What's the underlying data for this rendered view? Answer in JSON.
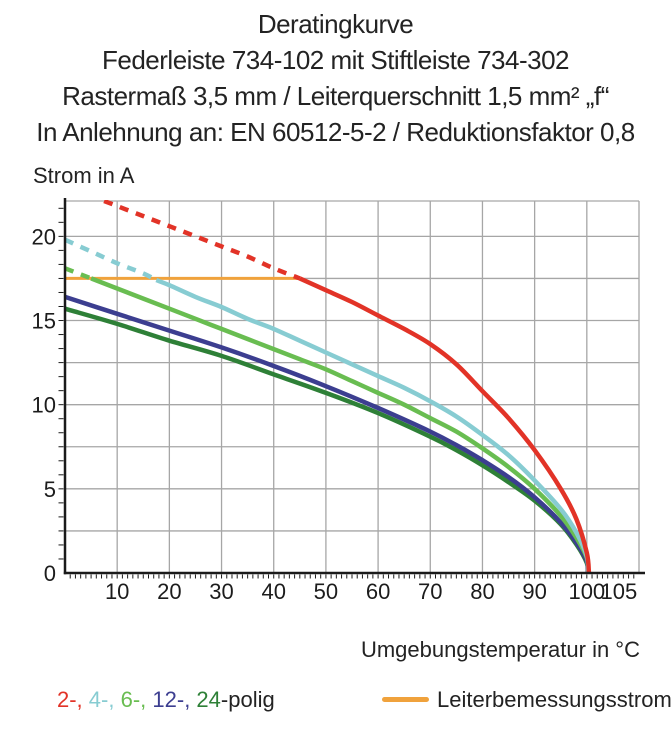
{
  "title_block": {
    "line1": "Deratingkurve",
    "line2": "Federleiste 734-102 mit Stiftleiste 734-302",
    "line3": "Rastermaß 3,5 mm / Leiterquerschnitt 1,5 mm² „f“",
    "line4": "In Anlehnung an: EN 60512-5-2 / Reduktionsfaktor 0,8"
  },
  "axis_labels": {
    "y": "Strom in A",
    "x": "Umgebungstemperatur in °C"
  },
  "legend": {
    "poles": [
      {
        "label": "2-,",
        "color": "#e23327"
      },
      {
        "label": " 4-,",
        "color": "#87ccd2"
      },
      {
        "label": " 6-,",
        "color": "#69bd51"
      },
      {
        "label": " 12-,",
        "color": "#3c3e90"
      },
      {
        "label": " 24",
        "color": "#2e8037"
      }
    ],
    "suffix": "-polig",
    "suffix_color": "#232323",
    "rated_current_label": "Leiterbemessungsstrom",
    "rated_current_color": "#f0a23c"
  },
  "chart_data": {
    "type": "line",
    "title": "Deratingkurve",
    "xlabel": "Umgebungstemperatur in °C",
    "ylabel": "Strom in A",
    "xlim": [
      0,
      110
    ],
    "ylim": [
      0,
      22.1
    ],
    "grid": {
      "x_major": 10,
      "y_major": 2.5,
      "x_minor": 1,
      "y_minor": 0.8333,
      "color": "#a6a6a6"
    },
    "x_ticks": [
      {
        "v": 10,
        "t": "10"
      },
      {
        "v": 20,
        "t": "20"
      },
      {
        "v": 30,
        "t": "30"
      },
      {
        "v": 40,
        "t": "40"
      },
      {
        "v": 50,
        "t": "50"
      },
      {
        "v": 60,
        "t": "60"
      },
      {
        "v": 70,
        "t": "70"
      },
      {
        "v": 80,
        "t": "80"
      },
      {
        "v": 90,
        "t": "90"
      },
      {
        "v": 100,
        "t": "100"
      },
      {
        "v": 105,
        "t": "105",
        "dx": 6
      }
    ],
    "y_ticks": [
      {
        "v": 0,
        "t": "0"
      },
      {
        "v": 5,
        "t": "5"
      },
      {
        "v": 10,
        "t": "10"
      },
      {
        "v": 15,
        "t": "15"
      },
      {
        "v": 20,
        "t": "20"
      }
    ],
    "rated_current_A": 17.5,
    "series": [
      {
        "name": "Leiterbemessungsstrom",
        "color": "#f0a23c",
        "width": 3,
        "solid": [
          [
            0,
            17.5
          ],
          [
            45,
            17.5
          ]
        ]
      },
      {
        "name": "24-polig",
        "color": "#2e8037",
        "width": 4.5,
        "solid": [
          [
            0,
            15.7
          ],
          [
            10,
            14.8
          ],
          [
            20,
            13.8
          ],
          [
            30,
            12.9
          ],
          [
            40,
            11.8
          ],
          [
            50,
            10.7
          ],
          [
            60,
            9.5
          ],
          [
            70,
            8.1
          ],
          [
            75,
            7.3
          ],
          [
            80,
            6.4
          ],
          [
            85,
            5.4
          ],
          [
            90,
            4.3
          ],
          [
            95,
            2.9
          ],
          [
            98,
            1.7
          ],
          [
            100,
            0.6
          ],
          [
            100.2,
            0
          ]
        ]
      },
      {
        "name": "12-polig",
        "color": "#3c3e90",
        "width": 4.5,
        "solid": [
          [
            0,
            16.4
          ],
          [
            10,
            15.4
          ],
          [
            20,
            14.4
          ],
          [
            30,
            13.4
          ],
          [
            40,
            12.3
          ],
          [
            50,
            11.1
          ],
          [
            60,
            9.8
          ],
          [
            70,
            8.4
          ],
          [
            75,
            7.6
          ],
          [
            80,
            6.7
          ],
          [
            85,
            5.7
          ],
          [
            90,
            4.5
          ],
          [
            95,
            3.0
          ],
          [
            98,
            1.8
          ],
          [
            100,
            0.7
          ],
          [
            100.2,
            0
          ]
        ]
      },
      {
        "name": "6-polig",
        "color": "#69bd51",
        "width": 4.5,
        "dashed": [
          [
            0,
            18.1
          ],
          [
            5,
            17.5
          ]
        ],
        "solid": [
          [
            5,
            17.5
          ],
          [
            10,
            16.9
          ],
          [
            15,
            16.3
          ],
          [
            20,
            15.7
          ],
          [
            25,
            15.1
          ],
          [
            30,
            14.5
          ],
          [
            35,
            13.9
          ],
          [
            40,
            13.3
          ],
          [
            45,
            12.7
          ],
          [
            50,
            12.1
          ],
          [
            55,
            11.4
          ],
          [
            60,
            10.7
          ],
          [
            65,
            10.0
          ],
          [
            70,
            9.2
          ],
          [
            75,
            8.4
          ],
          [
            80,
            7.4
          ],
          [
            85,
            6.3
          ],
          [
            90,
            5.0
          ],
          [
            95,
            3.4
          ],
          [
            98,
            2.1
          ],
          [
            100,
            0.9
          ],
          [
            100.3,
            0
          ]
        ]
      },
      {
        "name": "4-polig",
        "color": "#87ccd2",
        "width": 4.5,
        "dashed": [
          [
            0,
            19.8
          ],
          [
            5,
            19.1
          ],
          [
            10,
            18.4
          ],
          [
            15,
            17.8
          ],
          [
            17.5,
            17.4
          ]
        ],
        "solid": [
          [
            17.5,
            17.4
          ],
          [
            20,
            17.1
          ],
          [
            25,
            16.4
          ],
          [
            30,
            15.8
          ],
          [
            35,
            15.1
          ],
          [
            40,
            14.5
          ],
          [
            45,
            13.8
          ],
          [
            50,
            13.1
          ],
          [
            55,
            12.4
          ],
          [
            60,
            11.7
          ],
          [
            65,
            11.0
          ],
          [
            70,
            10.2
          ],
          [
            75,
            9.3
          ],
          [
            80,
            8.2
          ],
          [
            85,
            7.0
          ],
          [
            90,
            5.5
          ],
          [
            95,
            3.8
          ],
          [
            98,
            2.4
          ],
          [
            100,
            1.0
          ],
          [
            100.3,
            0
          ]
        ]
      },
      {
        "name": "2-polig",
        "color": "#e23327",
        "width": 4.5,
        "dashed": [
          [
            7.5,
            22.1
          ],
          [
            10,
            21.8
          ],
          [
            15,
            21.2
          ],
          [
            20,
            20.6
          ],
          [
            25,
            20.0
          ],
          [
            30,
            19.4
          ],
          [
            35,
            18.8
          ],
          [
            40,
            18.1
          ],
          [
            45,
            17.5
          ]
        ],
        "solid": [
          [
            45,
            17.5
          ],
          [
            50,
            16.8
          ],
          [
            55,
            16.1
          ],
          [
            60,
            15.3
          ],
          [
            65,
            14.5
          ],
          [
            70,
            13.6
          ],
          [
            75,
            12.4
          ],
          [
            80,
            10.8
          ],
          [
            85,
            9.2
          ],
          [
            90,
            7.3
          ],
          [
            95,
            5.0
          ],
          [
            98,
            3.2
          ],
          [
            100,
            1.2
          ],
          [
            100.4,
            0
          ]
        ]
      }
    ]
  }
}
